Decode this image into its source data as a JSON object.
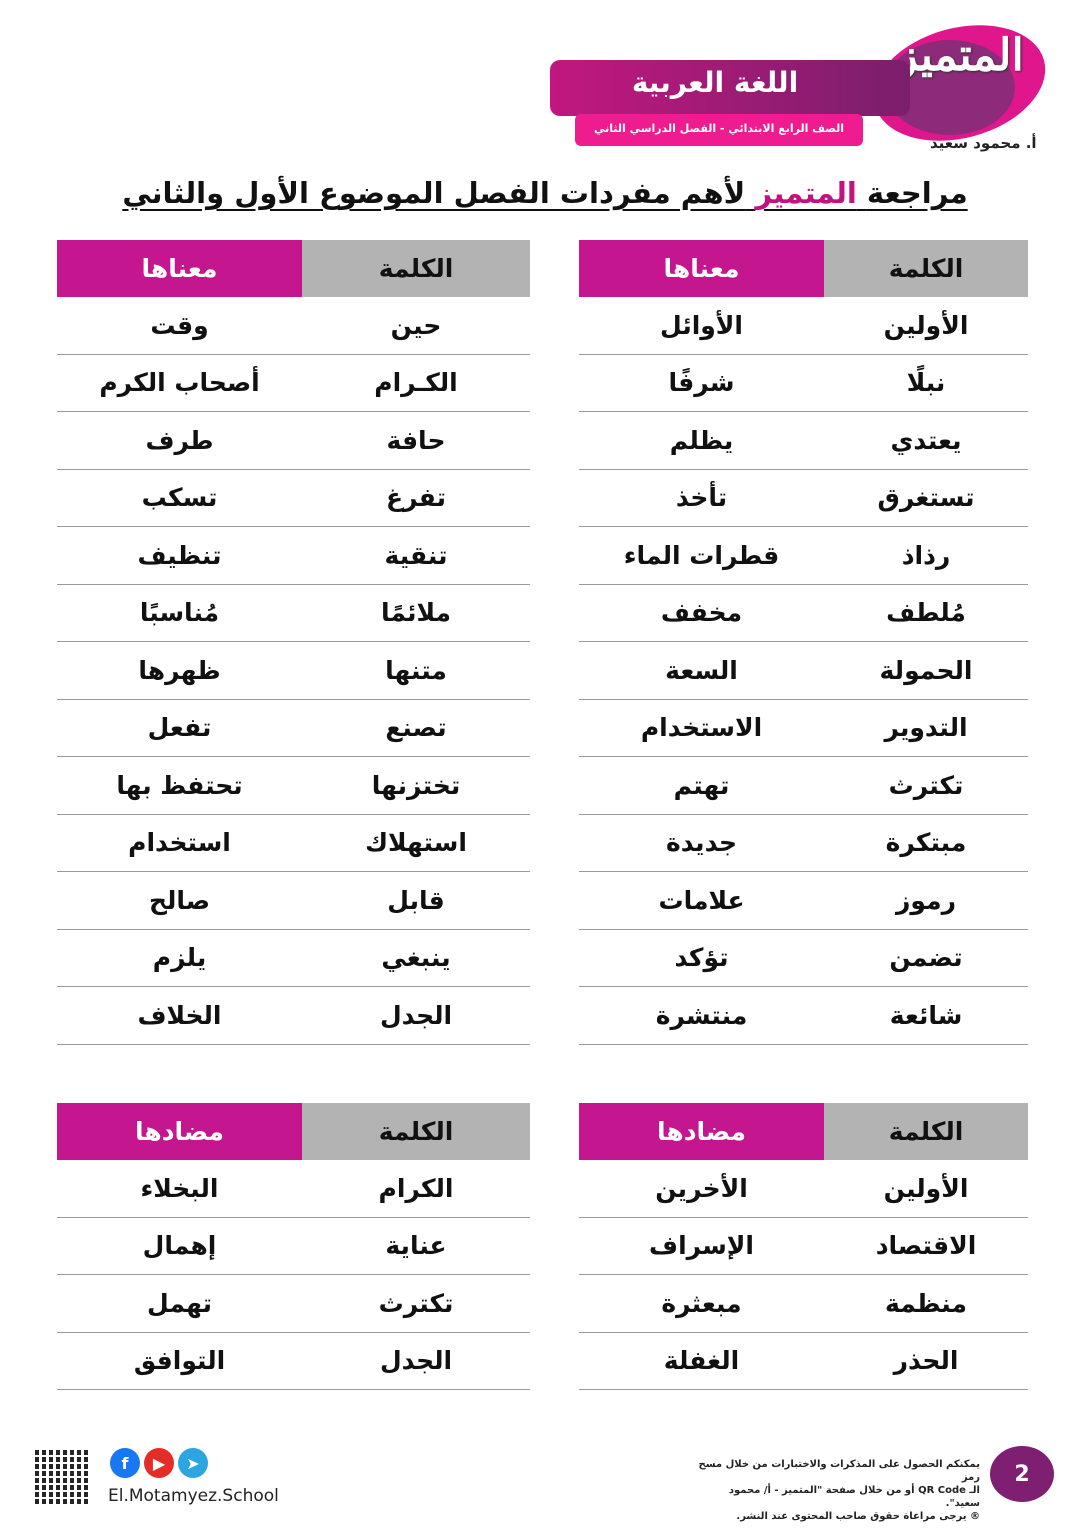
{
  "header": {
    "logo": "المتميز",
    "author": "أ. محمود سعيد",
    "subject": "اللغة العربية",
    "grade": "الصف الرابع الابتدائي - الفصل الدراسي الثاني"
  },
  "heading": {
    "part1": "مراجعة",
    "accent": "المتميز",
    "part2": "لأهم مفردات الفصل الموضوع الأول والثاني"
  },
  "meanings_right": {
    "word_header": "الكلمة",
    "meaning_header": "معناها",
    "rows": [
      [
        "الأولين",
        "الأوائل"
      ],
      [
        "نبلًا",
        "شرفًا"
      ],
      [
        "يعتدي",
        "يظلم"
      ],
      [
        "تستغرق",
        "تأخذ"
      ],
      [
        "رذاذ",
        "قطرات الماء"
      ],
      [
        "مُلطف",
        "مخفف"
      ],
      [
        "الحمولة",
        "السعة"
      ],
      [
        "التدوير",
        "الاستخدام"
      ],
      [
        "تكترث",
        "تهتم"
      ],
      [
        "مبتكرة",
        "جديدة"
      ],
      [
        "رموز",
        "علامات"
      ],
      [
        "تضمن",
        "تؤكد"
      ],
      [
        "شائعة",
        "منتشرة"
      ]
    ]
  },
  "meanings_left": {
    "word_header": "الكلمة",
    "meaning_header": "معناها",
    "rows": [
      [
        "حين",
        "وقت"
      ],
      [
        "الكـرام",
        "أصحاب الكرم"
      ],
      [
        "حافة",
        "طرف"
      ],
      [
        "تفرغ",
        "تسكب"
      ],
      [
        "تنقية",
        "تنظيف"
      ],
      [
        "ملائمًا",
        "مُناسبًا"
      ],
      [
        "متنها",
        "ظهرها"
      ],
      [
        "تصنع",
        "تفعل"
      ],
      [
        "تختزنها",
        "تحتفظ بها"
      ],
      [
        "استهلاك",
        "استخدام"
      ],
      [
        "قابل",
        "صالح"
      ],
      [
        "ينبغي",
        "يلزم"
      ],
      [
        "الجدل",
        "الخلاف"
      ]
    ]
  },
  "opposites_right": {
    "word_header": "الكلمة",
    "meaning_header": "مضادها",
    "rows": [
      [
        "الأولين",
        "الأخرين"
      ],
      [
        "الاقتصاد",
        "الإسراف"
      ],
      [
        "منظمة",
        "مبعثرة"
      ],
      [
        "الحذر",
        "الغفلة"
      ]
    ]
  },
  "opposites_left": {
    "word_header": "الكلمة",
    "meaning_header": "مضادها",
    "rows": [
      [
        "الكرام",
        "البخلاء"
      ],
      [
        "عناية",
        "إهمال"
      ],
      [
        "تكترث",
        "تهمل"
      ],
      [
        "الجدل",
        "التوافق"
      ]
    ]
  },
  "footer": {
    "note_line1": "يمكنكم الحصول على المذكرات والاختبارات من خلال مسح رمز",
    "note_line2": "الـ QR Code أو من خلال صفحة \"المتميز - أ/ محمود سعيد\".",
    "note_line3": "® يرجى مراعاة حقوق صاحب المحتوى عند النشر.",
    "page_number": "2",
    "website": "El.Motamyez.School",
    "social_icons": [
      "facebook-icon",
      "youtube-icon",
      "telegram-icon"
    ]
  },
  "colors": {
    "accent": "#c4168e",
    "header_gray": "#b3b3b3",
    "banner": "#7a1f6c",
    "pink": "#ee1c8e"
  }
}
